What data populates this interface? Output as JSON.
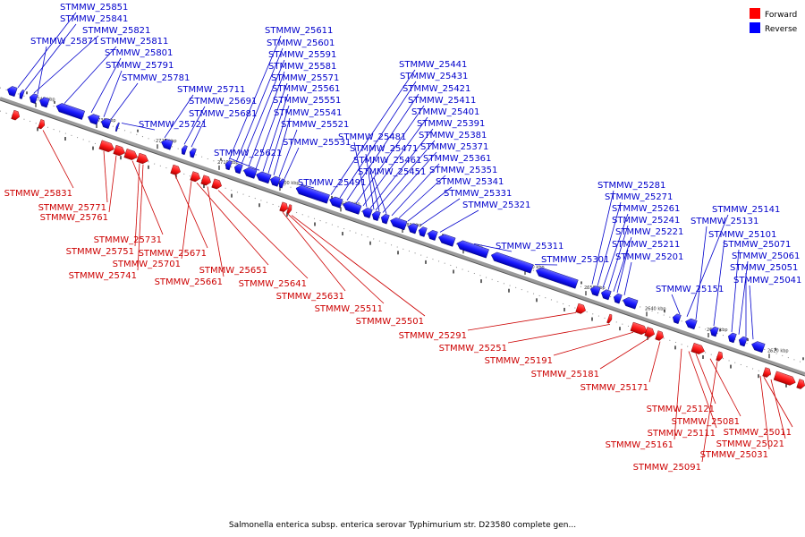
{
  "legend": {
    "forward_label": "Forward",
    "reverse_label": "Reverse",
    "forward_color": "#ff0000",
    "reverse_color": "#0000ff"
  },
  "caption": "Salmonella enterica subsp. enterica serovar Typhimurium str. D23580 complete gen...",
  "axis": {
    "ticks": [
      "2740 kbp",
      "2730 kbp",
      "2720 kbp",
      "2710 kbp",
      "2700 kbp",
      "2690 kbp",
      "2680 kbp",
      "2670 kbp",
      "2660 kbp",
      "2650 kbp",
      "2640 kbp",
      "2630 kbp",
      "2620 kbp"
    ]
  },
  "reverse_genes": [
    "STMMW_25851",
    "STMMW_25841",
    "STMMW_25821",
    "STMMW_25871",
    "STMMW_25811",
    "STMMW_25801",
    "STMMW_25791",
    "STMMW_25781",
    "STMMW_25711",
    "STMMW_25691",
    "STMMW_25681",
    "STMMW_25721",
    "STMMW_25611",
    "STMMW_25601",
    "STMMW_25591",
    "STMMW_25581",
    "STMMW_25571",
    "STMMW_25561",
    "STMMW_25551",
    "STMMW_25541",
    "STMMW_25521",
    "STMMW_25531",
    "STMMW_25621",
    "STMMW_25491",
    "STMMW_25441",
    "STMMW_25431",
    "STMMW_25421",
    "STMMW_25411",
    "STMMW_25401",
    "STMMW_25391",
    "STMMW_25381",
    "STMMW_25481",
    "STMMW_25371",
    "STMMW_25471",
    "STMMW_25361",
    "STMMW_25461",
    "STMMW_25351",
    "STMMW_25451",
    "STMMW_25341",
    "STMMW_25331",
    "STMMW_25321",
    "STMMW_25311",
    "STMMW_25301",
    "STMMW_25281",
    "STMMW_25271",
    "STMMW_25261",
    "STMMW_25241",
    "STMMW_25221",
    "STMMW_25211",
    "STMMW_25201",
    "STMMW_25151",
    "STMMW_25141",
    "STMMW_25131",
    "STMMW_25101",
    "STMMW_25071",
    "STMMW_25061",
    "STMMW_25051",
    "STMMW_25041"
  ],
  "forward_genes": [
    "STMMW_25831",
    "STMMW_25771",
    "STMMW_25761",
    "STMMW_25731",
    "STMMW_25751",
    "STMMW_25671",
    "STMMW_25701",
    "STMMW_25741",
    "STMMW_25651",
    "STMMW_25661",
    "STMMW_25641",
    "STMMW_25631",
    "STMMW_25511",
    "STMMW_25501",
    "STMMW_25291",
    "STMMW_25251",
    "STMMW_25191",
    "STMMW_25181",
    "STMMW_25171",
    "STMMW_25121",
    "STMMW_25081",
    "STMMW_25111",
    "STMMW_25011",
    "STMMW_25161",
    "STMMW_25021",
    "STMMW_25031",
    "STMMW_25091"
  ]
}
